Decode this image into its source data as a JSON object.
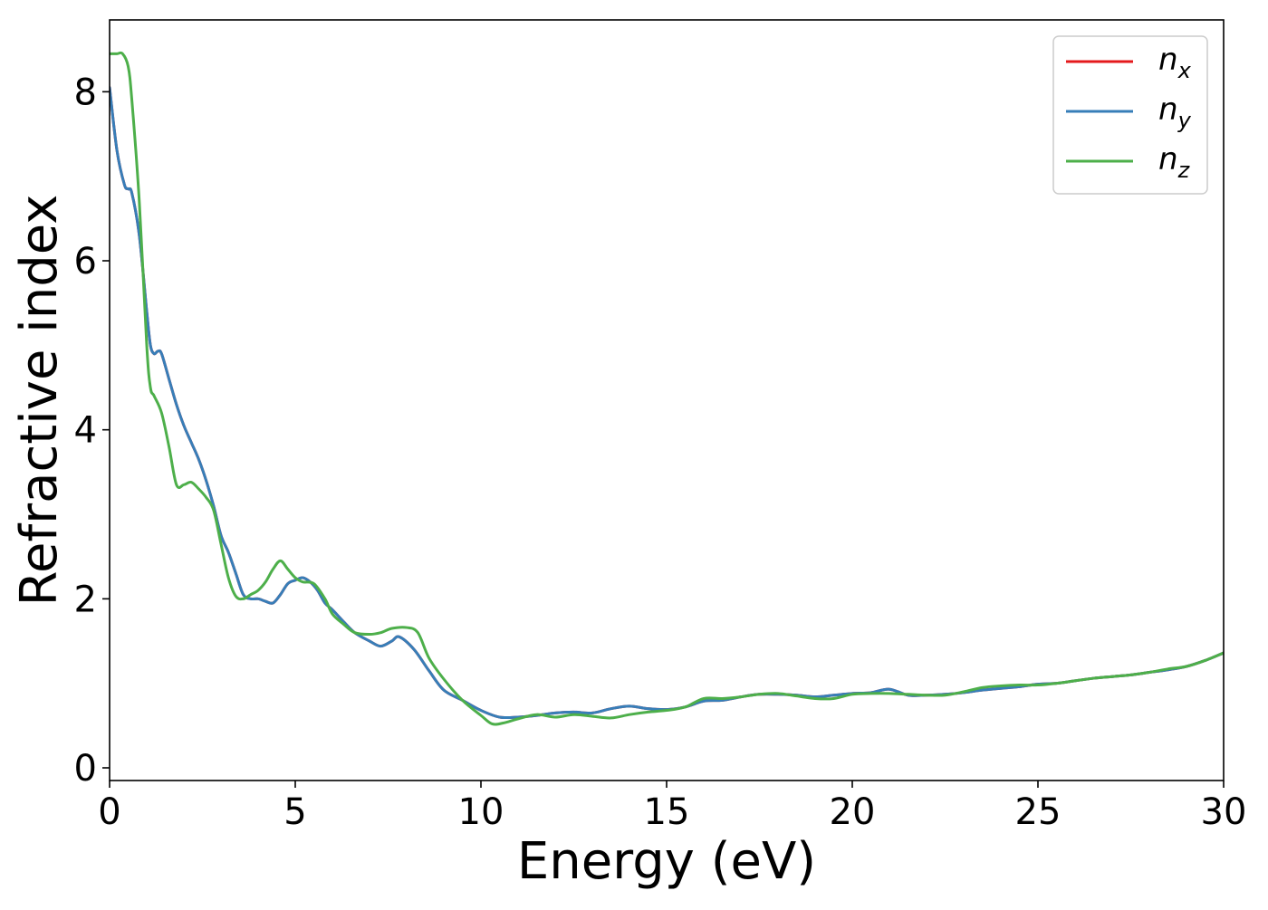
{
  "chart_data": {
    "type": "line",
    "xlabel": "Energy (eV)",
    "ylabel": "Refractive index",
    "xlim": [
      0,
      30
    ],
    "ylim": [
      -0.15,
      8.85
    ],
    "xticks": [
      0,
      5,
      10,
      15,
      20,
      25,
      30
    ],
    "yticks": [
      0,
      2,
      4,
      6,
      8
    ],
    "xtick_labels": [
      "0",
      "5",
      "10",
      "15",
      "20",
      "25",
      "30"
    ],
    "ytick_labels": [
      "0",
      "2",
      "4",
      "6",
      "8"
    ],
    "grid": false,
    "legend": {
      "placement": "top-right",
      "entries": [
        {
          "base": "n",
          "sub": "x",
          "color": "#e41a1c"
        },
        {
          "base": "n",
          "sub": "y",
          "color": "#377eb8"
        },
        {
          "base": "n",
          "sub": "z",
          "color": "#4daf4a"
        }
      ]
    },
    "series": [
      {
        "name": "n_x",
        "color": "#e41a1c",
        "x": [
          0,
          0.2,
          0.4,
          0.5,
          0.6,
          0.8,
          1.0,
          1.1,
          1.2,
          1.3,
          1.4,
          1.6,
          1.8,
          2.0,
          2.2,
          2.4,
          2.6,
          2.8,
          3.0,
          3.2,
          3.4,
          3.6,
          3.8,
          4.0,
          4.2,
          4.4,
          4.6,
          4.8,
          5.0,
          5.2,
          5.4,
          5.6,
          5.8,
          6.0,
          6.3,
          6.6,
          7.0,
          7.3,
          7.6,
          7.8,
          8.2,
          8.6,
          9.0,
          9.5,
          10.0,
          10.5,
          11.0,
          11.5,
          12.0,
          12.5,
          13.0,
          13.5,
          14.0,
          14.5,
          15.0,
          15.5,
          16.0,
          16.5,
          17.0,
          17.5,
          18.0,
          18.5,
          19.0,
          19.5,
          20.0,
          20.5,
          21.0,
          21.5,
          22.0,
          22.5,
          23.0,
          23.5,
          24.0,
          24.5,
          25.0,
          25.5,
          26.0,
          26.5,
          27.0,
          27.5,
          28.0,
          28.5,
          29.0,
          29.5,
          30.0
        ],
        "y": [
          8.05,
          7.3,
          6.9,
          6.85,
          6.8,
          6.3,
          5.4,
          5.0,
          4.9,
          4.93,
          4.9,
          4.6,
          4.3,
          4.05,
          3.85,
          3.65,
          3.4,
          3.1,
          2.75,
          2.55,
          2.3,
          2.05,
          2.0,
          2.0,
          1.97,
          1.95,
          2.05,
          2.18,
          2.22,
          2.25,
          2.2,
          2.1,
          1.95,
          1.87,
          1.73,
          1.6,
          1.5,
          1.44,
          1.5,
          1.55,
          1.4,
          1.15,
          0.92,
          0.8,
          0.68,
          0.6,
          0.6,
          0.62,
          0.65,
          0.66,
          0.65,
          0.7,
          0.73,
          0.7,
          0.69,
          0.72,
          0.79,
          0.8,
          0.84,
          0.87,
          0.87,
          0.86,
          0.84,
          0.86,
          0.88,
          0.89,
          0.93,
          0.86,
          0.86,
          0.87,
          0.89,
          0.92,
          0.94,
          0.96,
          0.99,
          1.0,
          1.03,
          1.06,
          1.08,
          1.1,
          1.13,
          1.16,
          1.2,
          1.27,
          1.36
        ]
      },
      {
        "name": "n_y",
        "color": "#377eb8",
        "x": [
          0,
          0.2,
          0.4,
          0.5,
          0.6,
          0.8,
          1.0,
          1.1,
          1.2,
          1.3,
          1.4,
          1.6,
          1.8,
          2.0,
          2.2,
          2.4,
          2.6,
          2.8,
          3.0,
          3.2,
          3.4,
          3.6,
          3.8,
          4.0,
          4.2,
          4.4,
          4.6,
          4.8,
          5.0,
          5.2,
          5.4,
          5.6,
          5.8,
          6.0,
          6.3,
          6.6,
          7.0,
          7.3,
          7.6,
          7.8,
          8.2,
          8.6,
          9.0,
          9.5,
          10.0,
          10.5,
          11.0,
          11.5,
          12.0,
          12.5,
          13.0,
          13.5,
          14.0,
          14.5,
          15.0,
          15.5,
          16.0,
          16.5,
          17.0,
          17.5,
          18.0,
          18.5,
          19.0,
          19.5,
          20.0,
          20.5,
          21.0,
          21.5,
          22.0,
          22.5,
          23.0,
          23.5,
          24.0,
          24.5,
          25.0,
          25.5,
          26.0,
          26.5,
          27.0,
          27.5,
          28.0,
          28.5,
          29.0,
          29.5,
          30.0
        ],
        "y": [
          8.05,
          7.3,
          6.9,
          6.85,
          6.8,
          6.3,
          5.4,
          5.0,
          4.9,
          4.93,
          4.9,
          4.6,
          4.3,
          4.05,
          3.85,
          3.65,
          3.4,
          3.1,
          2.75,
          2.55,
          2.3,
          2.05,
          2.0,
          2.0,
          1.97,
          1.95,
          2.05,
          2.18,
          2.22,
          2.25,
          2.2,
          2.1,
          1.95,
          1.87,
          1.73,
          1.6,
          1.5,
          1.44,
          1.5,
          1.55,
          1.4,
          1.15,
          0.92,
          0.8,
          0.68,
          0.6,
          0.6,
          0.62,
          0.65,
          0.66,
          0.65,
          0.7,
          0.73,
          0.7,
          0.69,
          0.72,
          0.79,
          0.8,
          0.84,
          0.87,
          0.87,
          0.86,
          0.84,
          0.86,
          0.88,
          0.89,
          0.93,
          0.86,
          0.86,
          0.87,
          0.89,
          0.92,
          0.94,
          0.96,
          0.99,
          1.0,
          1.03,
          1.06,
          1.08,
          1.1,
          1.13,
          1.16,
          1.2,
          1.27,
          1.36
        ]
      },
      {
        "name": "n_z",
        "color": "#4daf4a",
        "x": [
          0,
          0.2,
          0.35,
          0.5,
          0.6,
          0.8,
          1.0,
          1.1,
          1.2,
          1.4,
          1.6,
          1.8,
          2.0,
          2.2,
          2.4,
          2.6,
          2.8,
          3.0,
          3.2,
          3.4,
          3.6,
          3.8,
          4.0,
          4.2,
          4.4,
          4.6,
          4.8,
          5.0,
          5.2,
          5.5,
          5.8,
          6.0,
          6.3,
          6.6,
          7.0,
          7.3,
          7.6,
          8.0,
          8.3,
          8.6,
          9.0,
          9.5,
          10.0,
          10.3,
          10.6,
          11.0,
          11.5,
          12.0,
          12.5,
          13.0,
          13.5,
          14.0,
          14.5,
          15.0,
          15.5,
          16.0,
          16.5,
          17.0,
          17.5,
          18.0,
          18.5,
          19.0,
          19.5,
          20.0,
          20.5,
          21.0,
          21.5,
          22.0,
          22.5,
          23.0,
          23.5,
          24.0,
          24.5,
          25.0,
          25.5,
          26.0,
          26.5,
          27.0,
          27.5,
          28.0,
          28.5,
          29.0,
          29.5,
          30.0
        ],
        "y": [
          8.45,
          8.45,
          8.45,
          8.3,
          7.9,
          6.7,
          5.0,
          4.5,
          4.4,
          4.2,
          3.8,
          3.35,
          3.35,
          3.38,
          3.3,
          3.2,
          3.05,
          2.65,
          2.25,
          2.03,
          2.0,
          2.05,
          2.1,
          2.2,
          2.35,
          2.45,
          2.35,
          2.25,
          2.2,
          2.18,
          2.0,
          1.82,
          1.7,
          1.6,
          1.58,
          1.6,
          1.65,
          1.66,
          1.6,
          1.3,
          1.05,
          0.8,
          0.62,
          0.52,
          0.53,
          0.58,
          0.63,
          0.6,
          0.63,
          0.61,
          0.59,
          0.63,
          0.66,
          0.68,
          0.72,
          0.82,
          0.82,
          0.84,
          0.87,
          0.88,
          0.85,
          0.82,
          0.82,
          0.87,
          0.88,
          0.88,
          0.87,
          0.86,
          0.86,
          0.9,
          0.95,
          0.97,
          0.98,
          0.98,
          1.0,
          1.03,
          1.06,
          1.08,
          1.1,
          1.13,
          1.17,
          1.2,
          1.27,
          1.36
        ]
      }
    ]
  }
}
